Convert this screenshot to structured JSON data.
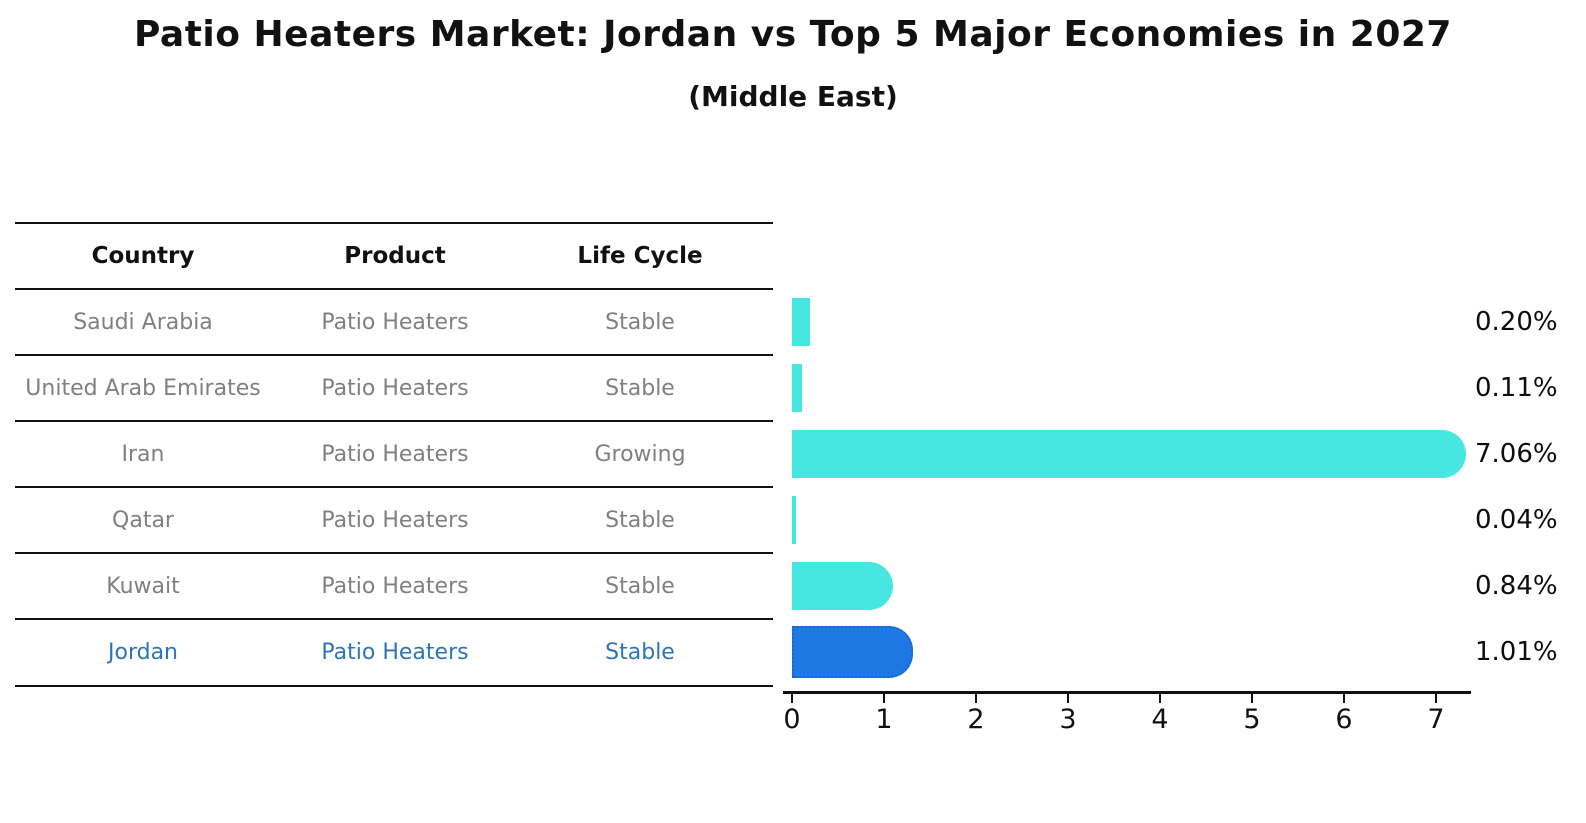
{
  "chart_data": {
    "type": "bar",
    "orientation": "horizontal",
    "title": "Patio Heaters Market: Jordan vs Top 5 Major Economies in 2027",
    "subtitle": "(Middle East)",
    "categories": [
      "Saudi Arabia",
      "United Arab Emirates",
      "Iran",
      "Qatar",
      "Kuwait",
      "Jordan"
    ],
    "values": [
      0.2,
      0.11,
      7.06,
      0.04,
      0.84,
      1.01
    ],
    "value_labels": [
      "0.20%",
      "0.11%",
      "7.06%",
      "0.04%",
      "0.84%",
      "1.01%"
    ],
    "xticks": [
      0,
      1,
      2,
      3,
      4,
      5,
      6,
      7
    ],
    "xlim": [
      0,
      7.4
    ],
    "grid": false,
    "legend": "none",
    "highlight_category": "Jordan",
    "colors": {
      "bar": "#46E6E1",
      "highlight_bar": "#1E78E4",
      "highlight_bar_edge": "#1B63D6",
      "highlight_text": "#2E75B6",
      "row_text": "#808080",
      "header_text": "#111111",
      "value_text": "#0d0d0d"
    }
  },
  "table": {
    "headers": [
      "Country",
      "Product",
      "Life Cycle"
    ],
    "rows": [
      {
        "country": "Saudi Arabia",
        "product": "Patio Heaters",
        "life_cycle": "Stable"
      },
      {
        "country": "United Arab Emirates",
        "product": "Patio Heaters",
        "life_cycle": "Stable"
      },
      {
        "country": "Iran",
        "product": "Patio Heaters",
        "life_cycle": "Growing"
      },
      {
        "country": "Qatar",
        "product": "Patio Heaters",
        "life_cycle": "Stable"
      },
      {
        "country": "Kuwait",
        "product": "Patio Heaters",
        "life_cycle": "Stable"
      },
      {
        "country": "Jordan",
        "product": "Patio Heaters",
        "life_cycle": "Stable"
      }
    ]
  }
}
